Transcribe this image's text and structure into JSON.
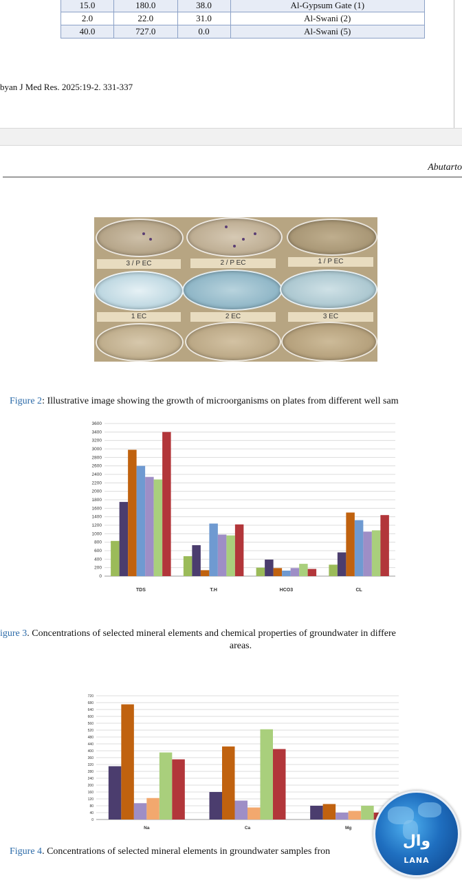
{
  "table": {
    "rows": [
      [
        "15.0",
        "180.0",
        "38.0",
        "Al-Gypsum Gate (1)"
      ],
      [
        "2.0",
        "22.0",
        "31.0",
        "Al-Swani (2)"
      ],
      [
        "40.0",
        "727.0",
        "0.0",
        "Al-Swani (5)"
      ]
    ]
  },
  "citation": "byan J Med Res. 2025:19-2. 331-337",
  "running_head": "Abutarto",
  "photo": {
    "labels": [
      "3 / P EC",
      "2 / P EC",
      "1 / P EC",
      "1   EC",
      "2   EC",
      "3   EC"
    ]
  },
  "figure2": {
    "label": "Figure 2",
    "text": ": Illustrative image showing the growth of microorganisms on plates from different well sam"
  },
  "figure3": {
    "label": "igure 3",
    "text": ". Concentrations of selected mineral elements and chemical properties of groundwater in differe",
    "line2": "areas."
  },
  "figure4": {
    "label": "Figure 4",
    "text": ". Concentrations of selected mineral elements in groundwater samples fron"
  },
  "logo": {
    "arabic": "وال",
    "name": "LANA"
  },
  "chart_data": [
    {
      "type": "bar",
      "categories": [
        "TDS",
        "T.H",
        "HCO3",
        "CL"
      ],
      "ylim": [
        0,
        3600
      ],
      "yticks": [
        0,
        200,
        400,
        600,
        800,
        1000,
        1200,
        1400,
        1600,
        1800,
        2000,
        2200,
        2400,
        2600,
        2800,
        3000,
        3200,
        3400,
        3600
      ],
      "grid": true,
      "colors": [
        "#9bbb59",
        "#4b3d6e",
        "#c0620f",
        "#6f9ad1",
        "#9e8ec6",
        "#a9cf7c",
        "#b2363a"
      ],
      "series": [
        {
          "values": [
            830,
            470,
            200,
            270
          ]
        },
        {
          "values": [
            1750,
            730,
            390,
            560
          ]
        },
        {
          "values": [
            2980,
            140,
            190,
            1500
          ]
        },
        {
          "values": [
            2600,
            1240,
            130,
            1320
          ]
        },
        {
          "values": [
            2340,
            980,
            190,
            1050
          ]
        },
        {
          "values": [
            2280,
            960,
            290,
            1080
          ]
        },
        {
          "values": [
            3400,
            1220,
            170,
            1440
          ]
        }
      ]
    },
    {
      "type": "bar",
      "categories": [
        "Na",
        "Ca",
        "Mg"
      ],
      "ylim": [
        0,
        720
      ],
      "yticks": [
        0,
        40,
        80,
        120,
        160,
        200,
        240,
        280,
        320,
        360,
        400,
        440,
        480,
        520,
        560,
        600,
        640,
        680,
        720
      ],
      "grid": true,
      "colors": [
        "#4b3d6e",
        "#c0620f",
        "#9e8ec6",
        "#f2a86e",
        "#a9cf7c",
        "#b2363a"
      ],
      "series": [
        {
          "values": [
            310,
            160,
            80
          ]
        },
        {
          "values": [
            670,
            425,
            90
          ]
        },
        {
          "values": [
            95,
            110,
            40
          ]
        },
        {
          "values": [
            125,
            70,
            50
          ]
        },
        {
          "values": [
            390,
            525,
            80
          ]
        },
        {
          "values": [
            350,
            410,
            40
          ]
        }
      ]
    }
  ]
}
